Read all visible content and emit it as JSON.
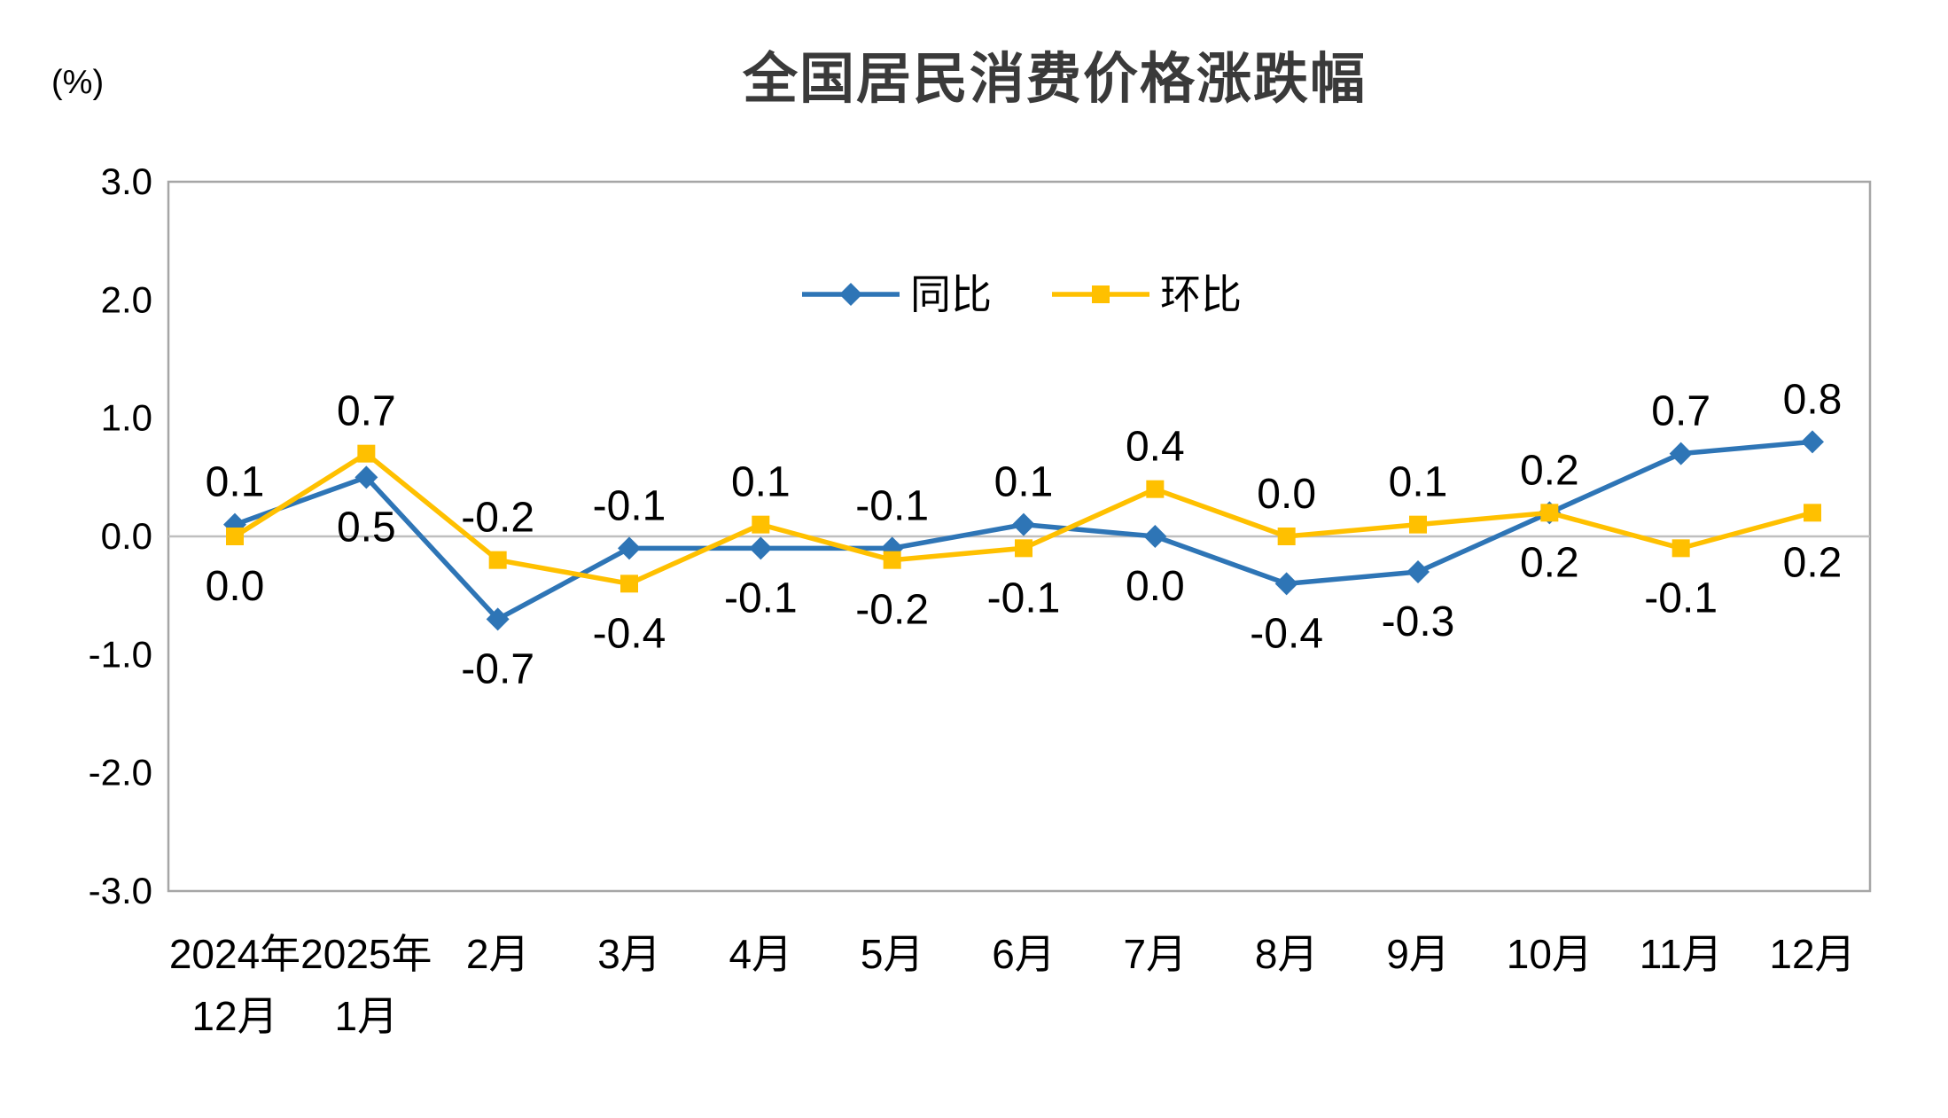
{
  "chart_data": {
    "type": "line",
    "title": "全国居民消费价格涨跌幅",
    "ylabel": "(%)",
    "xlabel": "",
    "ylim": [
      -3.0,
      3.0
    ],
    "ytick_interval": 1.0,
    "ytick_labels": [
      "3.0",
      "2.0",
      "1.0",
      "0.0",
      "-1.0",
      "-2.0",
      "-3.0"
    ],
    "categories": [
      "2024年\n12月",
      "2025年\n1月",
      "2月",
      "3月",
      "4月",
      "5月",
      "6月",
      "7月",
      "8月",
      "9月",
      "10月",
      "11月",
      "12月"
    ],
    "series": [
      {
        "id": "yoy",
        "name": "同比",
        "color": "#2E75B6",
        "marker": "diamond",
        "values": [
          0.1,
          0.5,
          -0.7,
          -0.1,
          -0.1,
          -0.1,
          0.1,
          0.0,
          -0.4,
          -0.3,
          0.2,
          0.7,
          0.8
        ]
      },
      {
        "id": "mom",
        "name": "环比",
        "color": "#FFC000",
        "marker": "square",
        "values": [
          0.0,
          0.7,
          -0.2,
          -0.4,
          0.1,
          -0.2,
          -0.1,
          0.4,
          0.0,
          0.1,
          0.2,
          -0.1,
          0.2
        ]
      }
    ],
    "grid": false,
    "legend_position": "inside-top-center",
    "data_labels": true,
    "colors": {
      "axis_border": "#A6A6A6",
      "zero_line": "#BFBFBF",
      "label_text": "#000000",
      "title_text": "#3A3A3A"
    }
  }
}
